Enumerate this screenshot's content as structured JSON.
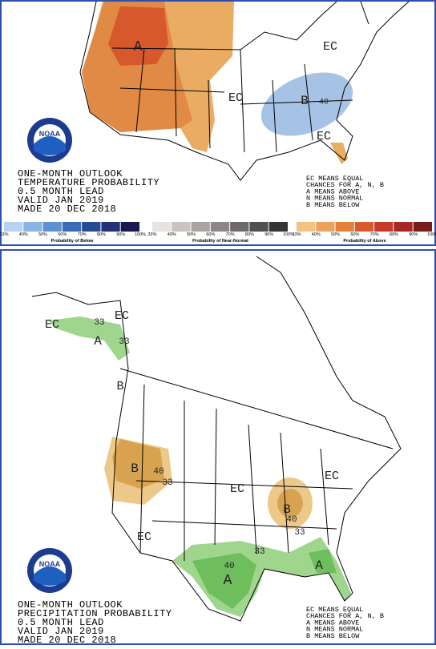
{
  "panels": [
    {
      "title_lines": [
        "ONE-MONTH OUTLOOK",
        "TEMPERATURE PROBABILITY",
        "0.5 MONTH LEAD",
        "VALID JAN 2019",
        "MADE 20 DEC 2018"
      ],
      "legend_lines": [
        "EC MEANS EQUAL",
        "CHANCES FOR A, N, B",
        "A MEANS ABOVE",
        "N MEANS NORMAL",
        "B MEANS BELOW"
      ],
      "logo": "NOAA",
      "map_labels": [
        "A",
        "EC",
        "EC",
        "B",
        "40",
        "EC"
      ],
      "colorbar": {
        "ticks": [
          "33%",
          "40%",
          "50%",
          "60%",
          "70%",
          "80%",
          "90%",
          "100%"
        ],
        "groups": [
          "Probability of Below",
          "Probability of Near-Normal",
          "Probability of Above"
        ]
      }
    },
    {
      "title_lines": [
        "ONE-MONTH OUTLOOK",
        "PRECIPITATION PROBABILITY",
        "0.5 MONTH LEAD",
        "VALID JAN 2019",
        "MADE 20 DEC 2018"
      ],
      "legend_lines": [
        "EC MEANS EQUAL",
        "CHANCES FOR A, N, B",
        "A MEANS ABOVE",
        "N MEANS NORMAL",
        "B MEANS BELOW"
      ],
      "logo": "NOAA",
      "map_labels": [
        "EC",
        "EC",
        "33",
        "A",
        "33",
        "B",
        "B",
        "40",
        "33",
        "EC",
        "B",
        "40",
        "33",
        "EC",
        "EC",
        "33",
        "40",
        "A",
        "A"
      ]
    }
  ]
}
